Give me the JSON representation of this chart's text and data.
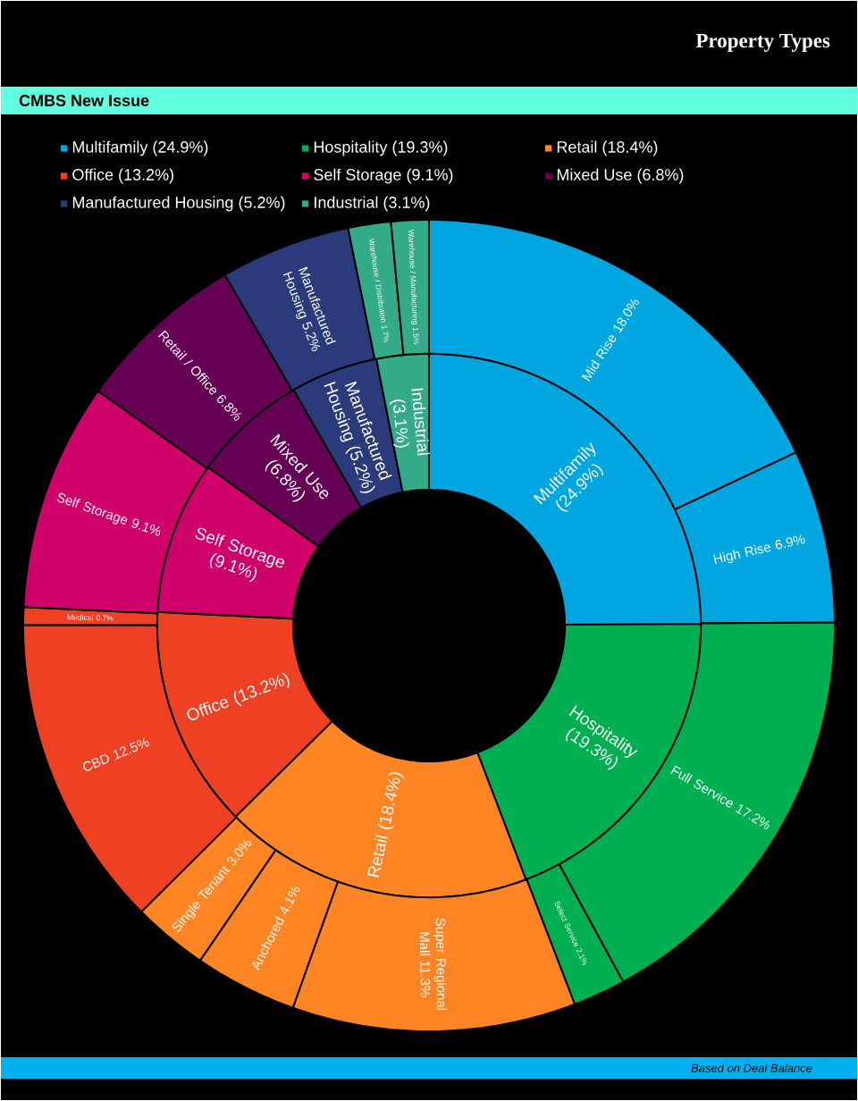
{
  "chart_data": [
    {
      "type": "donut",
      "legend": "top",
      "categories": [
        "Multifamily",
        "Hospitality",
        "Retail",
        "Office",
        "Self Storage",
        "Mixed Use",
        "Manufactured Housing",
        "Industrial"
      ],
      "values": [
        24.9,
        19.3,
        18.4,
        13.2,
        9.1,
        6.8,
        5.2,
        3.1
      ],
      "value_labels": [
        "(24.9%)",
        "(19.3%)",
        "(18.4%)",
        "(13.2%)",
        "(9.1%)",
        "(6.8%)",
        "(5.2%)",
        "(3.1%)"
      ],
      "colors": [
        "#00a6e0",
        "#00b050",
        "#ff8424",
        "#ee4022",
        "#d0006a",
        "#660055",
        "#2b3a7a",
        "#33aa88"
      ]
    },
    {
      "type": "donut",
      "title": "Property Types",
      "subtitle": "CMBS New Issue",
      "annotations": [
        "Based on Deal Balance"
      ],
      "categories": [
        "Mid Rise",
        "High Rise",
        "Full Service",
        "Select Service",
        "Super Regional Mall",
        "Anchored",
        "Single Tenant",
        "CBD",
        "Medical",
        "Self Storage",
        "Retail / Office",
        "Manufactured Housing",
        "Warehouse / Distribution",
        "Warehouse / Manufacturing"
      ],
      "values": [
        18.0,
        6.9,
        17.2,
        2.1,
        11.3,
        4.1,
        3.0,
        12.5,
        0.7,
        9.1,
        6.8,
        5.2,
        1.7,
        1.5
      ],
      "value_labels": [
        "18.0%",
        "6.9%",
        "17.2%",
        "2.1%",
        "11.3%",
        "4.1%",
        "3.0%",
        "12.5%",
        "0.7%",
        "9.1%",
        "6.8%",
        "5.2%",
        "1.7%",
        "1.5%"
      ],
      "colors": [
        "#00a6e0",
        "#00a6e0",
        "#00b050",
        "#00b050",
        "#ff8424",
        "#ff8424",
        "#ff8424",
        "#ee4022",
        "#ee4022",
        "#d0006a",
        "#660055",
        "#2b3a7a",
        "#33aa88",
        "#33aa88"
      ]
    }
  ]
}
